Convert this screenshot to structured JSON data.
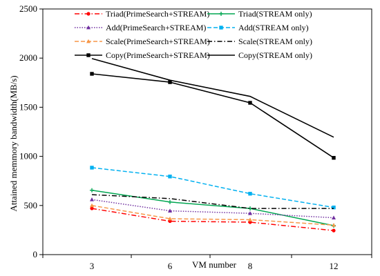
{
  "chart_data": {
    "type": "line",
    "title": "",
    "xlabel": "VM number",
    "ylabel": "Attained memmory bandwidth(MB/s)",
    "x": [
      "3",
      "6",
      "8",
      "12"
    ],
    "ylim": [
      0,
      2500
    ],
    "yticks": [
      "0",
      "500",
      "1000",
      "1500",
      "2000",
      "2500"
    ],
    "grid": false,
    "legend_position": "top",
    "series": [
      {
        "name": "Triad(PrimeSearch+STREAM)",
        "values": [
          470,
          340,
          330,
          245
        ],
        "color": "#ff0000",
        "dash": "dashdot",
        "marker": "circle"
      },
      {
        "name": "Triad(STREAM only)",
        "values": [
          655,
          535,
          470,
          295
        ],
        "color": "#00a651",
        "dash": "solid",
        "marker": "plus"
      },
      {
        "name": "Add(PrimeSearch+STREAM)",
        "values": [
          560,
          445,
          420,
          375
        ],
        "color": "#7030a0",
        "dash": "dotted",
        "marker": "triangle"
      },
      {
        "name": "Add(STREAM only)",
        "values": [
          885,
          795,
          620,
          480
        ],
        "color": "#00b0f0",
        "dash": "dashed",
        "marker": "square"
      },
      {
        "name": "Scale(PrimeSearch+STREAM)",
        "values": [
          500,
          365,
          355,
          300
        ],
        "color": "#f79646",
        "dash": "dashed",
        "marker": "triangle"
      },
      {
        "name": "Scale(STREAM only)",
        "values": [
          610,
          570,
          470,
          470
        ],
        "color": "#000000",
        "dash": "dashdot",
        "marker": "none"
      },
      {
        "name": "Copy(PrimeSearch+STREAM)",
        "values": [
          1840,
          1755,
          1545,
          985
        ],
        "color": "#000000",
        "dash": "solid",
        "marker": "square"
      },
      {
        "name": "Copy(STREAM only)",
        "values": [
          1995,
          1775,
          1610,
          1195
        ],
        "color": "#000000",
        "dash": "solid",
        "marker": "none"
      }
    ]
  }
}
